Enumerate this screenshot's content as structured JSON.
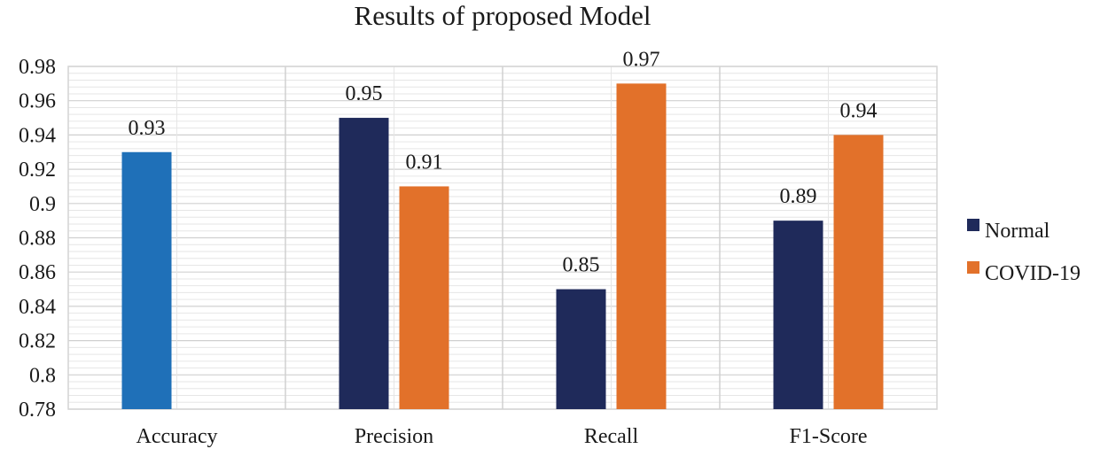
{
  "chart_data": {
    "type": "bar",
    "title": "Results of proposed Model",
    "xlabel": "",
    "ylabel": "",
    "categories": [
      "Accuracy",
      "Precision",
      "Recall",
      "F1-Score"
    ],
    "series": [
      {
        "name": "",
        "color": "#1f70b8",
        "values": [
          0.93,
          null,
          null,
          null
        ]
      },
      {
        "name": "Normal",
        "color": "#1f2a5a",
        "values": [
          null,
          0.95,
          0.85,
          0.89
        ]
      },
      {
        "name": "COVID-19",
        "color": "#e2712a",
        "values": [
          null,
          0.91,
          0.97,
          0.94
        ]
      }
    ],
    "ylim": [
      0.78,
      0.98
    ],
    "yticks": [
      "0.98",
      "0.96",
      "0.94",
      "0.92",
      "0.9",
      "0.88",
      "0.86",
      "0.84",
      "0.82",
      "0.8",
      "0.78"
    ],
    "data_labels": true,
    "grid": true,
    "legend": {
      "position": "right",
      "entries": [
        "Normal",
        "COVID-19"
      ]
    },
    "colors": {
      "plot_border": "#d4d4d4",
      "grid_major": "#d0d0d0",
      "grid_minor": "#e6e6e6",
      "category_divider": "#d0d0d0"
    }
  }
}
